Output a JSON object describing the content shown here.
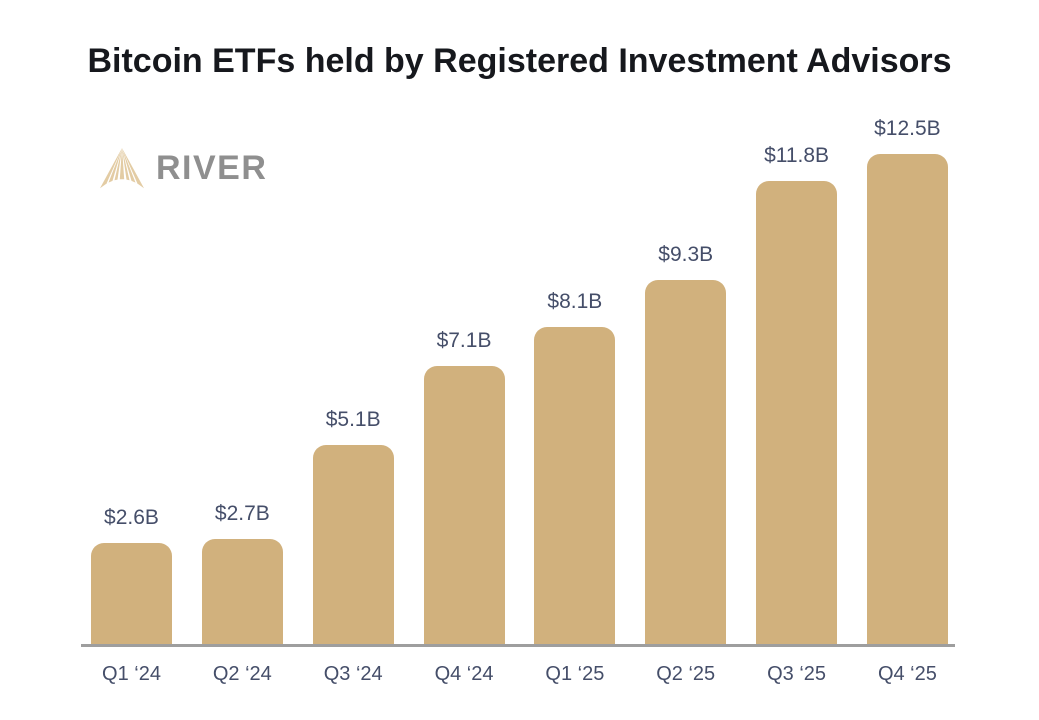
{
  "header": {
    "title": "Bitcoin ETFs held by Registered Investment Advisors",
    "title_color": "#16181D"
  },
  "logo": {
    "brand": "RIVER",
    "icon": "river-rays-icon",
    "icon_color": "#E3CCA4",
    "text_color": "#8F8F8F"
  },
  "chart_data": {
    "type": "bar",
    "title": "Bitcoin ETFs held by Registered Investment Advisors",
    "categories": [
      "Q1 ‘24",
      "Q2 ‘24",
      "Q3 ‘24",
      "Q4 ‘24",
      "Q1 ‘25",
      "Q2 ‘25",
      "Q3 ‘25",
      "Q4 ‘25"
    ],
    "values": [
      2.6,
      2.7,
      5.1,
      7.1,
      8.1,
      9.3,
      11.8,
      12.5
    ],
    "value_labels": [
      "$2.6B",
      "$2.7B",
      "$5.1B",
      "$7.1B",
      "$8.1B",
      "$9.3B",
      "$11.8B",
      "$12.5B"
    ],
    "xlabel": "",
    "ylabel": "",
    "ylim": [
      0,
      12.5
    ],
    "grid": false,
    "legend": false,
    "bar_color": "#D1B17D",
    "axis_line_color": "#9E9E9E",
    "label_color": "#454E69"
  }
}
